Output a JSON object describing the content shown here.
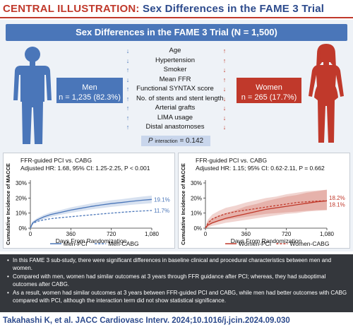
{
  "header": {
    "prefix": "CENTRAL ILLUSTRATION:",
    "title": "Sex Differences in the FAME 3 Trial"
  },
  "banner": {
    "text": "Sex Differences in the FAME 3 Trial (N = 1,500)"
  },
  "men": {
    "label": "Men",
    "count": "n = 1,235 (82.3%)",
    "color": "#4a76b9"
  },
  "women": {
    "label": "Women",
    "count": "n = 265 (17.7%)",
    "color": "#c0392b"
  },
  "factors": [
    "Age",
    "Hypertension",
    "Smoker",
    "Mean FFR",
    "Functional SYNTAX score",
    "No. of stents and stent length",
    "Arterial grafts",
    "LIMA usage",
    "Distal anastomoses"
  ],
  "men_arrows": [
    "↓",
    "↓",
    "↑",
    "↓",
    "↑",
    "↑",
    "↑",
    "↑",
    "↑"
  ],
  "women_arrows": [
    "↑",
    "↑",
    "↓",
    "↑",
    "↓",
    "↓",
    "↓",
    "↓",
    "↓"
  ],
  "p_interaction": {
    "label": "P",
    "sub": "interaction",
    "value": "= 0.142"
  },
  "chart_data": [
    {
      "type": "line",
      "title": "FFR-guided PCI vs. CABG",
      "subtitle": "Adjusted HR: 1.68, 95% CI: 1.25-2.25, P < 0.001",
      "xlabel": "Days From Randomization",
      "ylabel": "Cumulative Incidence of MACCE",
      "xlim": [
        0,
        1080
      ],
      "ylim": [
        0,
        30
      ],
      "xticks": [
        "0",
        "360",
        "720",
        "1,080"
      ],
      "yticks": [
        "0%",
        "10%",
        "20%",
        "30%"
      ],
      "grid": false,
      "legend": "bottom",
      "series": [
        {
          "name": "Men-PCI",
          "color": "#4a76b9",
          "dash": false,
          "band": true,
          "end_label": "19.1%",
          "x": [
            0,
            20,
            60,
            120,
            180,
            270,
            360,
            450,
            540,
            630,
            720,
            810,
            900,
            990,
            1080
          ],
          "y": [
            0,
            3.5,
            5.5,
            7.5,
            9.0,
            10.5,
            12.0,
            13.2,
            14.4,
            15.4,
            16.3,
            17.0,
            17.8,
            18.5,
            19.1
          ],
          "lower": [
            0,
            2.5,
            4.3,
            6.1,
            7.5,
            8.9,
            10.2,
            11.3,
            12.4,
            13.3,
            14.1,
            14.8,
            15.5,
            16.1,
            16.6
          ],
          "upper": [
            0,
            4.5,
            6.7,
            8.9,
            10.5,
            12.1,
            13.8,
            15.1,
            16.4,
            17.5,
            18.5,
            19.2,
            20.1,
            20.9,
            21.6
          ]
        },
        {
          "name": "Men-CABG",
          "color": "#4a76b9",
          "dash": true,
          "band": false,
          "end_label": "11.7%",
          "x": [
            0,
            20,
            60,
            120,
            180,
            270,
            360,
            450,
            540,
            630,
            720,
            810,
            900,
            990,
            1080
          ],
          "y": [
            0,
            3.0,
            4.5,
            5.5,
            6.3,
            7.0,
            7.6,
            8.2,
            8.8,
            9.4,
            10.0,
            10.5,
            11.0,
            11.4,
            11.7
          ]
        }
      ]
    },
    {
      "type": "line",
      "title": "FFR-guided PCI vs. CABG",
      "subtitle": "Adjusted HR: 1.15; 95% CI: 0.62-2.11, P = 0.662",
      "xlabel": "Days From Randomization",
      "ylabel": "Cumulative Incidence of MACCE",
      "xlim": [
        0,
        1080
      ],
      "ylim": [
        0,
        30
      ],
      "xticks": [
        "0",
        "360",
        "720",
        "1,080"
      ],
      "yticks": [
        "0%",
        "10%",
        "20%",
        "30%"
      ],
      "grid": false,
      "legend": "bottom",
      "series": [
        {
          "name": "Women-PCI",
          "color": "#c0392b",
          "dash": false,
          "band": true,
          "end_label": "18.1%",
          "x": [
            0,
            20,
            60,
            120,
            180,
            270,
            360,
            450,
            540,
            630,
            720,
            810,
            900,
            990,
            1080
          ],
          "y": [
            0,
            2.0,
            3.5,
            5.0,
            6.5,
            8.0,
            9.5,
            11.0,
            12.5,
            13.5,
            14.5,
            15.5,
            16.5,
            17.5,
            18.1
          ],
          "lower": [
            0,
            0.5,
            1.5,
            2.5,
            3.5,
            4.5,
            5.5,
            6.5,
            7.5,
            8.5,
            9.5,
            10.0,
            11.0,
            11.5,
            12.0
          ],
          "upper": [
            0,
            4.5,
            6.5,
            8.5,
            10.0,
            12.0,
            14.5,
            16.0,
            18.0,
            19.5,
            21.0,
            22.0,
            23.5,
            24.5,
            25.5
          ]
        },
        {
          "name": "Women-CABG",
          "color": "#c0392b",
          "dash": true,
          "band": true,
          "end_label": "18.2%",
          "x": [
            0,
            20,
            60,
            120,
            180,
            270,
            360,
            450,
            540,
            630,
            720,
            810,
            900,
            990,
            1080
          ],
          "y": [
            0,
            3.0,
            6.0,
            8.0,
            9.5,
            11.0,
            12.0,
            13.0,
            14.0,
            15.0,
            16.0,
            17.0,
            17.5,
            18.0,
            18.2
          ],
          "lower": [
            0,
            1.0,
            3.0,
            4.5,
            5.5,
            6.5,
            7.5,
            8.5,
            9.5,
            10.0,
            10.5,
            11.0,
            11.5,
            12.0,
            12.0
          ],
          "upper": [
            0,
            5.5,
            9.0,
            11.5,
            13.5,
            15.0,
            17.0,
            18.5,
            20.0,
            21.0,
            22.5,
            23.5,
            24.5,
            25.0,
            25.5
          ]
        }
      ]
    }
  ],
  "summary": [
    "In this FAME 3 sub-study, there were significant differences in baseline clinical and procedural characteristics between men and women.",
    "Compared with men, women had similar outcomes at 3 years through FFR guidance after PCI; whereas, they had suboptimal outcomes after CABG.",
    "As a result, women had similar outcomes at 3 years between FFR-guided PCI and CABG, while men had better outcomes with CABG compared with PCI, although the interaction term did not show statistical significance."
  ],
  "citation": "Takahashi K, et al. JACC Cardiovasc Interv. 2024;10.1016/j.jcin.2024.09.030"
}
